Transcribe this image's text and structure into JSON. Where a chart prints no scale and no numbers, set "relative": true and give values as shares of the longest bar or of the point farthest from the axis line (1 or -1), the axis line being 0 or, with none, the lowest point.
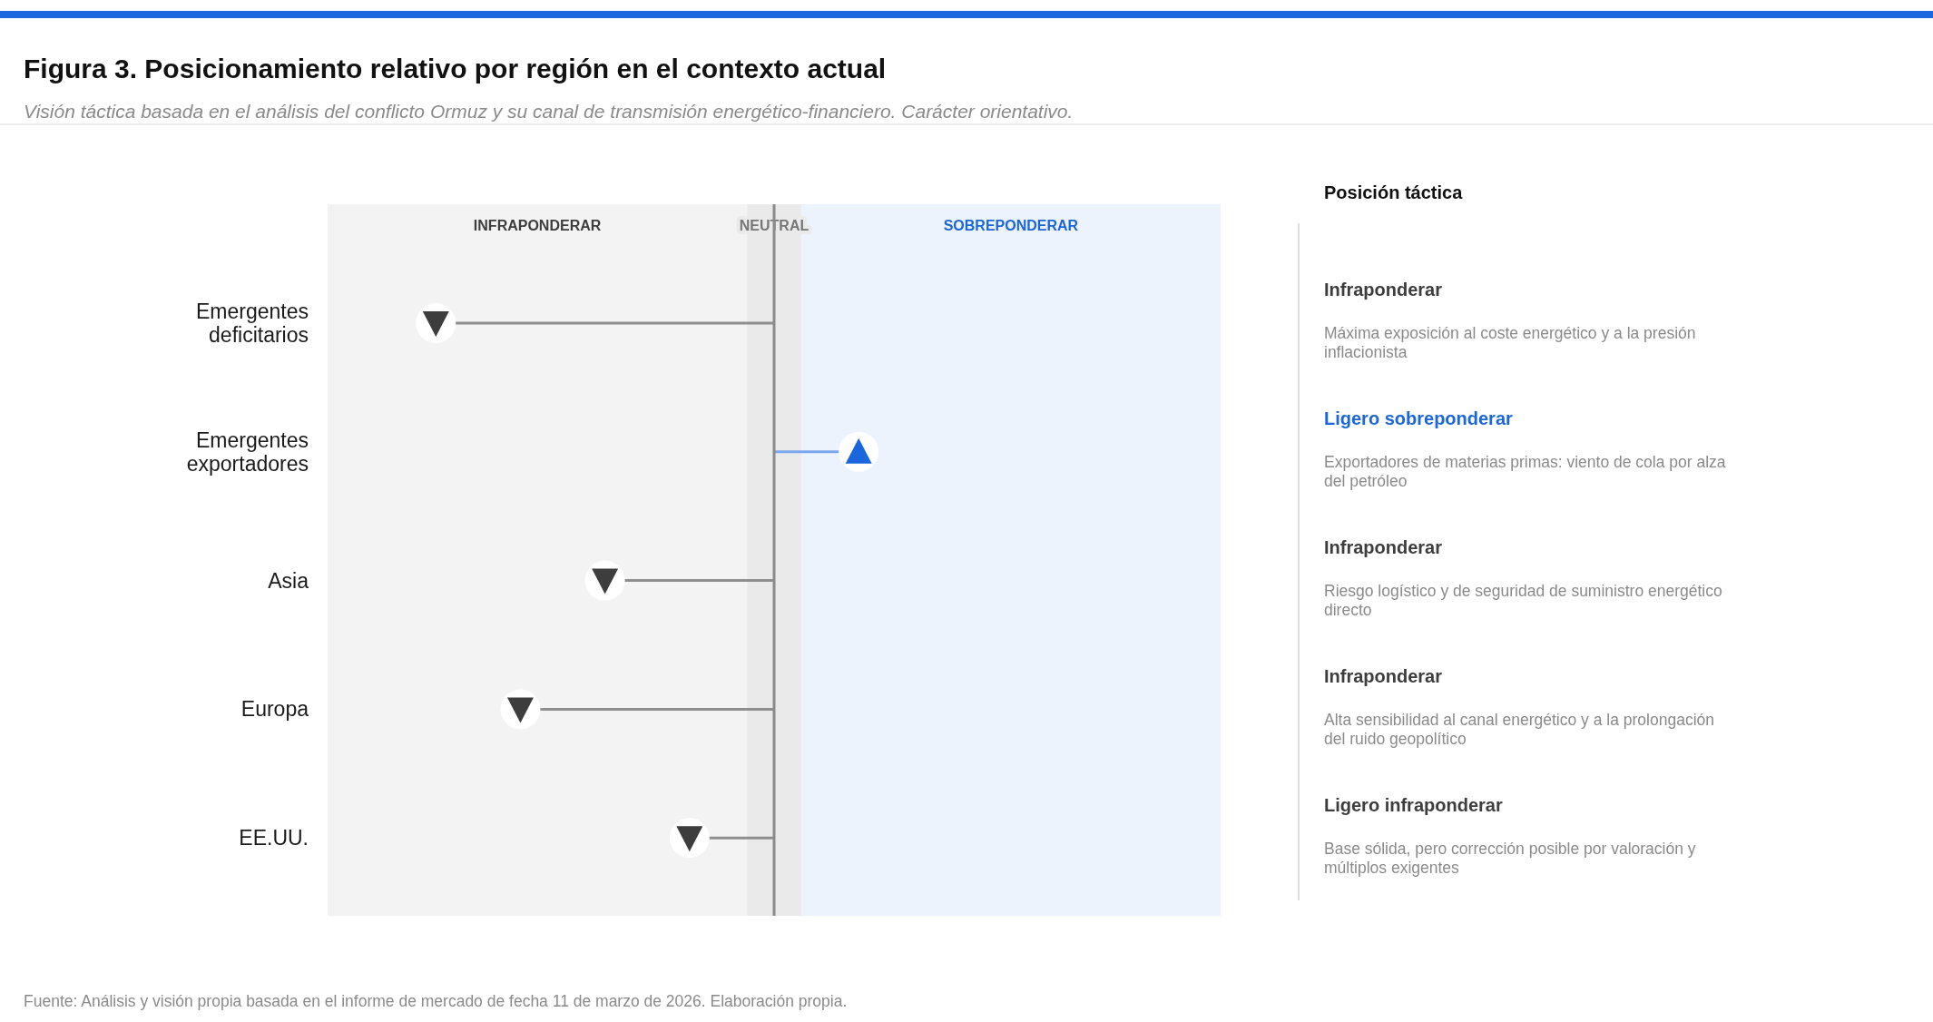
{
  "chart_data": [
    {
      "type": "lollipop",
      "title": "Figura 3. Posicionamiento relativo por región en el contexto actual",
      "subtitle": "Visión táctica basada en el análisis del conflicto Ormuz y su canal de transmisión energético-financiero. Carácter orientativo.",
      "orientation": "horizontal",
      "relative": true,
      "marker": "triangle",
      "categories": [
        "Emergentes deficitarios",
        "Emergentes exportadores",
        "Asia",
        "Europa",
        "EE.UU."
      ],
      "values": [
        -1,
        0.25,
        -0.5,
        -0.75,
        -0.25
      ],
      "colors": [
        "#3d3d3d",
        "#1a66dc",
        "#3d3d3d",
        "#3d3d3d",
        "#3d3d3d"
      ],
      "bands": [
        {
          "axis": "x",
          "from": -1.32,
          "to": -0.08,
          "label": "INFRAPONDERAR",
          "color": "#f3f3f3"
        },
        {
          "axis": "x",
          "from": -0.08,
          "to": 0.08,
          "label": "NEUTRAL",
          "color": "#eaeaeb"
        },
        {
          "axis": "x",
          "from": 0.08,
          "to": 1.32,
          "label": "SOBREPONDERAR",
          "color": "#edf3fd"
        }
      ],
      "ref_lines": [
        {
          "axis": "x",
          "value": 0,
          "color": "#8a8a8a"
        }
      ],
      "annotations": [
        "Fuente: Análisis y visión propia basada en el informe de mercado de fecha 11 de marzo de 2026. Elaboración propia."
      ]
    },
    {
      "type": "other",
      "title": "Posición táctica",
      "categories": [
        "Infraponderar",
        "Ligero sobreponderar",
        "Infraponderar",
        "Infraponderar",
        "Ligero infraponderar"
      ],
      "colors": [
        "#3d3d3d",
        "#1a66dc",
        "#3d3d3d",
        "#3d3d3d",
        "#3d3d3d"
      ],
      "annotations": [
        "Máxima exposición al coste energético y a la presión inflacionista",
        "Exportadores de materias primas: viento de cola por alza del petróleo",
        "Riesgo logístico y de seguridad de suministro energético directo",
        "Alta sensibilidad al canal energético y a la prolongación del ruido geopolítico",
        "Base sólida, pero corrección posible por valoración y múltiplos exigentes"
      ]
    }
  ]
}
